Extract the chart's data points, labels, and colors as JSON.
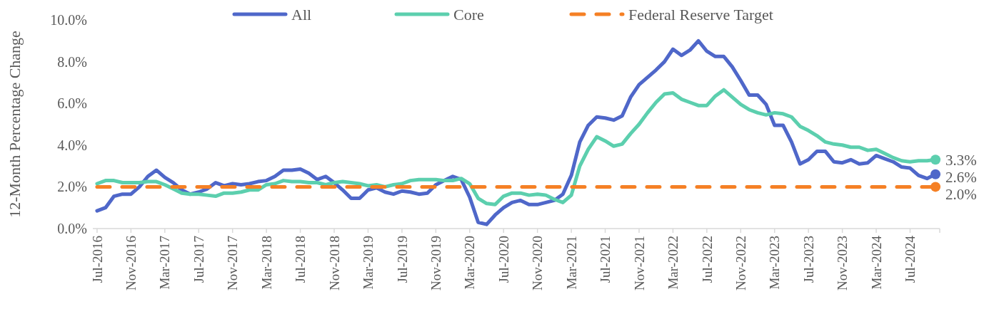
{
  "chart_data": {
    "type": "line",
    "ylabel": "12-Month Percentage Change",
    "categories": [
      "Jul-2016",
      null,
      null,
      null,
      "Nov-2016",
      null,
      null,
      null,
      "Mar-2017",
      null,
      null,
      null,
      "Jul-2017",
      null,
      null,
      null,
      "Nov-2017",
      null,
      null,
      null,
      "Mar-2018",
      null,
      null,
      null,
      "Jul-2018",
      null,
      null,
      null,
      "Nov-2018",
      null,
      null,
      null,
      "Mar-2019",
      null,
      null,
      null,
      "Jul-2019",
      null,
      null,
      null,
      "Nov-2019",
      null,
      null,
      null,
      "Mar-2020",
      null,
      null,
      null,
      "Jul-2020",
      null,
      null,
      null,
      "Nov-2020",
      null,
      null,
      null,
      "Mar-2021",
      null,
      null,
      null,
      "Jul-2021",
      null,
      null,
      null,
      "Nov-2021",
      null,
      null,
      null,
      "Mar-2022",
      null,
      null,
      null,
      "Jul-2022",
      null,
      null,
      null,
      "Nov-2022",
      null,
      null,
      null,
      "Mar-2023",
      null,
      null,
      null,
      "Jul-2023",
      null,
      null,
      null,
      "Nov-2023",
      null,
      null,
      null,
      "Mar-2024",
      null,
      null,
      null,
      "Jul-2024",
      null,
      null,
      null
    ],
    "series": [
      {
        "name": "All",
        "color": "#4f67c9",
        "values": [
          0.85,
          1.0,
          1.55,
          1.65,
          1.65,
          2.0,
          2.5,
          2.8,
          2.45,
          2.2,
          1.85,
          1.65,
          1.75,
          1.9,
          2.2,
          2.05,
          2.15,
          2.1,
          2.15,
          2.25,
          2.3,
          2.5,
          2.8,
          2.8,
          2.85,
          2.65,
          2.35,
          2.5,
          2.2,
          1.85,
          1.45,
          1.45,
          1.85,
          1.95,
          1.75,
          1.65,
          1.8,
          1.75,
          1.65,
          1.7,
          2.1,
          2.3,
          2.5,
          2.35,
          1.5,
          0.3,
          0.2,
          0.65,
          1.0,
          1.25,
          1.35,
          1.15,
          1.15,
          1.25,
          1.35,
          1.65,
          2.55,
          4.15,
          4.95,
          5.35,
          5.3,
          5.2,
          5.4,
          6.3,
          6.9,
          7.25,
          7.6,
          8.0,
          8.6,
          8.3,
          8.55,
          9.0,
          8.5,
          8.25,
          8.25,
          7.75,
          7.1,
          6.4,
          6.4,
          5.95,
          4.95,
          4.95,
          4.15,
          3.1,
          3.3,
          3.7,
          3.7,
          3.2,
          3.15,
          3.3,
          3.1,
          3.15,
          3.5,
          3.35,
          3.2,
          2.95,
          2.9,
          2.55,
          2.4,
          2.6
        ],
        "value_labels": [
          null,
          null,
          null,
          null,
          null,
          null,
          null,
          null,
          null,
          null,
          null,
          null,
          null,
          null,
          null,
          null,
          null,
          null,
          null,
          null,
          null,
          null,
          null,
          null,
          null,
          null,
          null,
          null,
          null,
          null,
          null,
          null,
          null,
          null,
          null,
          null,
          null,
          null,
          null,
          null,
          null,
          null,
          null,
          null,
          null,
          null,
          null,
          null,
          null,
          null,
          null,
          null,
          null,
          null,
          null,
          null,
          null,
          null,
          null,
          null,
          null,
          null,
          null,
          null,
          null,
          null,
          null,
          null,
          null,
          null,
          null,
          null,
          null,
          null,
          null,
          null,
          null,
          null,
          null,
          null,
          null,
          null,
          null,
          null,
          null,
          null,
          null,
          null,
          null,
          null,
          null,
          null,
          null,
          null,
          null,
          null,
          null,
          null,
          null,
          "2.6%"
        ]
      },
      {
        "name": "Core",
        "color": "#5ccfae",
        "values": [
          2.15,
          2.3,
          2.3,
          2.2,
          2.2,
          2.2,
          2.25,
          2.25,
          2.1,
          1.9,
          1.7,
          1.65,
          1.65,
          1.6,
          1.55,
          1.7,
          1.7,
          1.75,
          1.85,
          1.85,
          2.1,
          2.15,
          2.3,
          2.25,
          2.25,
          2.2,
          2.2,
          2.1,
          2.2,
          2.25,
          2.2,
          2.15,
          2.05,
          2.1,
          2.0,
          2.1,
          2.15,
          2.3,
          2.35,
          2.35,
          2.35,
          2.3,
          2.3,
          2.4,
          2.15,
          1.45,
          1.2,
          1.15,
          1.55,
          1.7,
          1.7,
          1.6,
          1.65,
          1.6,
          1.4,
          1.25,
          1.6,
          3.0,
          3.8,
          4.4,
          4.2,
          3.95,
          4.05,
          4.55,
          5.0,
          5.55,
          6.05,
          6.45,
          6.5,
          6.2,
          6.05,
          5.9,
          5.9,
          6.35,
          6.65,
          6.3,
          5.95,
          5.7,
          5.55,
          5.45,
          5.55,
          5.5,
          5.35,
          4.9,
          4.7,
          4.45,
          4.15,
          4.05,
          4.0,
          3.9,
          3.9,
          3.75,
          3.8,
          3.6,
          3.4,
          3.25,
          3.2,
          3.25,
          3.25,
          3.3
        ],
        "value_labels": [
          null,
          null,
          null,
          null,
          null,
          null,
          null,
          null,
          null,
          null,
          null,
          null,
          null,
          null,
          null,
          null,
          null,
          null,
          null,
          null,
          null,
          null,
          null,
          null,
          null,
          null,
          null,
          null,
          null,
          null,
          null,
          null,
          null,
          null,
          null,
          null,
          null,
          null,
          null,
          null,
          null,
          null,
          null,
          null,
          null,
          null,
          null,
          null,
          null,
          null,
          null,
          null,
          null,
          null,
          null,
          null,
          null,
          null,
          null,
          null,
          null,
          null,
          null,
          null,
          null,
          null,
          null,
          null,
          null,
          null,
          null,
          null,
          null,
          null,
          null,
          null,
          null,
          null,
          null,
          null,
          null,
          null,
          null,
          null,
          null,
          null,
          null,
          null,
          null,
          null,
          null,
          null,
          null,
          null,
          null,
          null,
          null,
          null,
          null,
          "3.3%"
        ]
      },
      {
        "name": "Federal Reserve Target",
        "color": "#f58025",
        "line_style": "dashed",
        "values": [
          2,
          2,
          2,
          2,
          2,
          2,
          2,
          2,
          2,
          2,
          2,
          2,
          2,
          2,
          2,
          2,
          2,
          2,
          2,
          2,
          2,
          2,
          2,
          2,
          2,
          2,
          2,
          2,
          2,
          2,
          2,
          2,
          2,
          2,
          2,
          2,
          2,
          2,
          2,
          2,
          2,
          2,
          2,
          2,
          2,
          2,
          2,
          2,
          2,
          2,
          2,
          2,
          2,
          2,
          2,
          2,
          2,
          2,
          2,
          2,
          2,
          2,
          2,
          2,
          2,
          2,
          2,
          2,
          2,
          2,
          2,
          2,
          2,
          2,
          2,
          2,
          2,
          2,
          2,
          2,
          2,
          2,
          2,
          2,
          2,
          2,
          2,
          2,
          2,
          2,
          2,
          2,
          2,
          2,
          2,
          2,
          2,
          2,
          2,
          2
        ],
        "value_labels": [
          null,
          null,
          null,
          null,
          null,
          null,
          null,
          null,
          null,
          null,
          null,
          null,
          null,
          null,
          null,
          null,
          null,
          null,
          null,
          null,
          null,
          null,
          null,
          null,
          null,
          null,
          null,
          null,
          null,
          null,
          null,
          null,
          null,
          null,
          null,
          null,
          null,
          null,
          null,
          null,
          null,
          null,
          null,
          null,
          null,
          null,
          null,
          null,
          null,
          null,
          null,
          null,
          null,
          null,
          null,
          null,
          null,
          null,
          null,
          null,
          null,
          null,
          null,
          null,
          null,
          null,
          null,
          null,
          null,
          null,
          null,
          null,
          null,
          null,
          null,
          null,
          null,
          null,
          null,
          null,
          null,
          null,
          null,
          null,
          null,
          null,
          null,
          null,
          null,
          null,
          null,
          null,
          null,
          null,
          null,
          null,
          null,
          null,
          null,
          "2.0%"
        ]
      }
    ],
    "ylim": [
      0,
      10
    ],
    "yticks": [
      {
        "value": 0,
        "label": "0.0%"
      },
      {
        "value": 2,
        "label": "2.0%"
      },
      {
        "value": 4,
        "label": "4.0%"
      },
      {
        "value": 6,
        "label": "6.0%"
      },
      {
        "value": 8,
        "label": "8.0%"
      },
      {
        "value": 10,
        "label": "10.0%"
      }
    ],
    "grid": false,
    "legend": "top",
    "marker": "none"
  }
}
